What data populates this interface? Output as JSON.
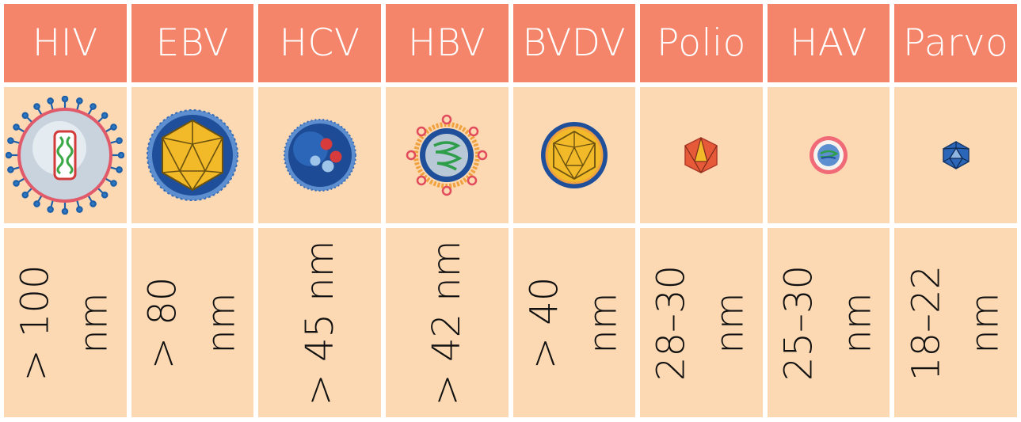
{
  "viruses": [
    {
      "name": "HIV",
      "size": "> 100\nnm",
      "icon": "hiv-virion-icon"
    },
    {
      "name": "EBV",
      "size": "> 80\nnm",
      "icon": "ebv-virion-icon"
    },
    {
      "name": "HCV",
      "size": "> 45 nm",
      "icon": "hcv-virion-icon"
    },
    {
      "name": "HBV",
      "size": "> 42 nm",
      "icon": "hbv-virion-icon"
    },
    {
      "name": "BVDV",
      "size": "> 40\nnm",
      "icon": "bvdv-virion-icon"
    },
    {
      "name": "Polio",
      "size": "28–30\nnm",
      "icon": "polio-virion-icon"
    },
    {
      "name": "HAV",
      "size": "25–30\nnm",
      "icon": "hav-virion-icon"
    },
    {
      "name": "Parvo",
      "size": "18–22\nnm",
      "icon": "parvo-virion-icon"
    }
  ],
  "colors": {
    "header": "#f4846a",
    "cell": "#fcd9b3",
    "envelope_blue": "#1f5fa8",
    "capsid_gold": "#f2b928"
  }
}
